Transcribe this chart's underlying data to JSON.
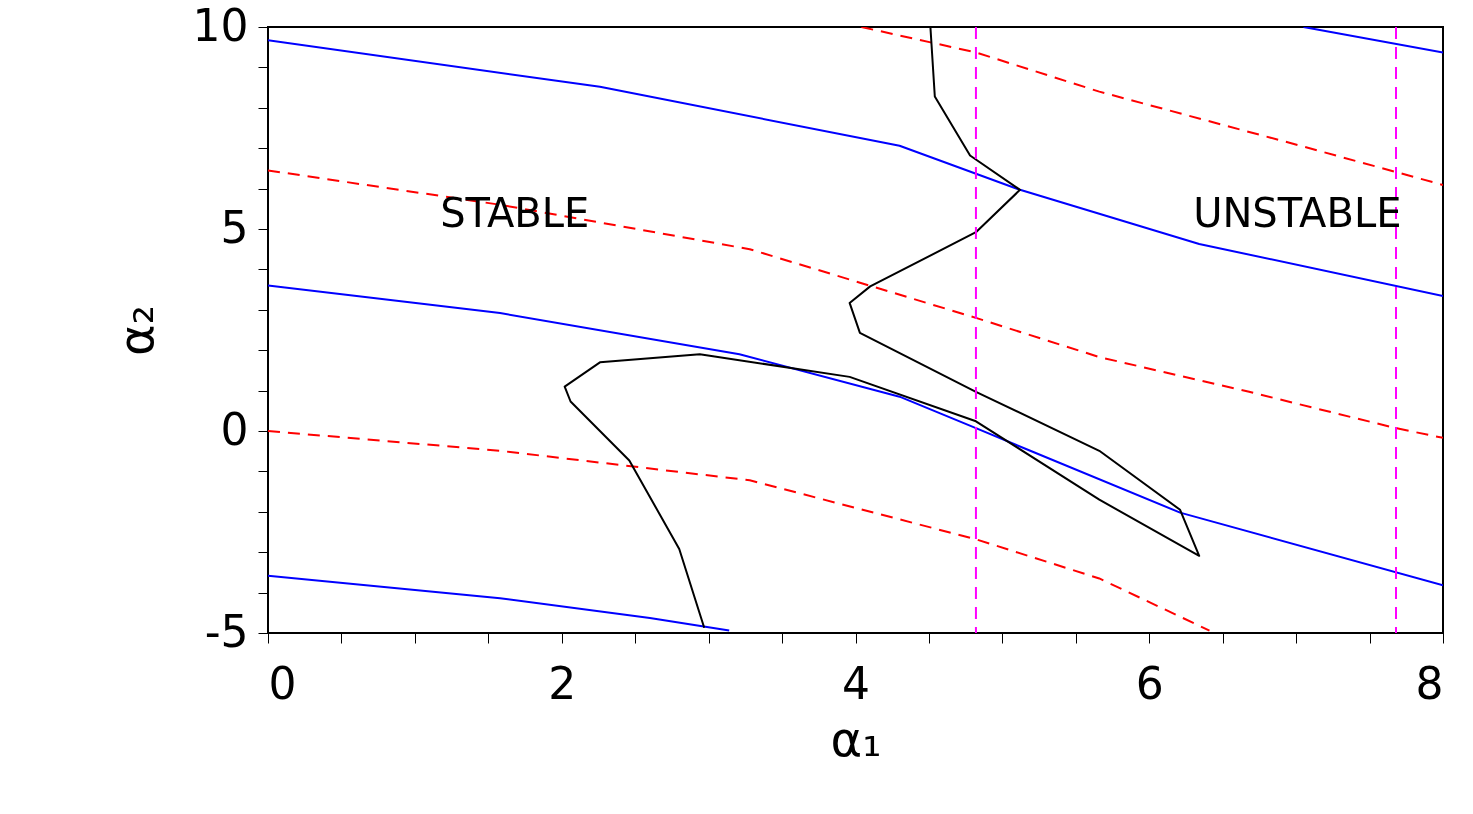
{
  "chart_data": {
    "type": "line",
    "xlabel": "α₁",
    "ylabel": "α₂",
    "xlim": [
      0,
      8
    ],
    "ylim": [
      -5,
      10
    ],
    "xticks": [
      0,
      {
        "value": 0.5,
        "label": null
      },
      {
        "value": 1,
        "label": null
      },
      {
        "value": 1.5,
        "label": null
      },
      2,
      {
        "value": 2.5,
        "label": null
      },
      {
        "value": 3,
        "label": null
      },
      {
        "value": 3.5,
        "label": null
      },
      4,
      {
        "value": 4.5,
        "label": null
      },
      {
        "value": 5,
        "label": null
      },
      {
        "value": 5.5,
        "label": null
      },
      6,
      {
        "value": 6.5,
        "label": null
      },
      {
        "value": 7,
        "label": null
      },
      {
        "value": 7.5,
        "label": null
      },
      8
    ],
    "yticks": [
      -5,
      {
        "value": -4,
        "label": null
      },
      {
        "value": -3,
        "label": null
      },
      {
        "value": -2,
        "label": null
      },
      {
        "value": -1,
        "label": null
      },
      0,
      {
        "value": 1,
        "label": null
      },
      {
        "value": 2,
        "label": null
      },
      {
        "value": 3,
        "label": null
      },
      {
        "value": 4,
        "label": null
      },
      5,
      {
        "value": 6,
        "label": null
      },
      {
        "value": 7,
        "label": null
      },
      {
        "value": 8,
        "label": null
      },
      {
        "value": 9,
        "label": null
      },
      10
    ],
    "grid": false,
    "marker": "none",
    "series": [
      {
        "color": "#0000ff",
        "line_style": "solid",
        "x": [
          0,
          2.26,
          4.3,
          5.12,
          6.34,
          8
        ],
        "values": [
          9.67,
          8.52,
          7.06,
          5.97,
          4.63,
          3.34
        ]
      },
      {
        "color": "#0000ff",
        "line_style": "solid",
        "x": [
          0,
          1.58,
          3.21,
          4.3,
          4.82,
          5.19,
          6.21,
          8
        ],
        "values": [
          3.6,
          2.92,
          1.9,
          0.85,
          0.07,
          -0.49,
          -2.02,
          -3.82
        ]
      },
      {
        "color": "#0000ff",
        "line_style": "solid",
        "x": [
          0,
          1.58,
          2.6,
          3.14
        ],
        "values": [
          -3.58,
          -4.14,
          -4.63,
          -4.94
        ]
      },
      {
        "color": "#0000ff",
        "line_style": "solid",
        "x": [
          7.05,
          8
        ],
        "values": [
          10,
          9.37
        ]
      },
      {
        "color": "#ff0000",
        "line_style": "dashed",
        "x": [
          4.04,
          4.82,
          5.66,
          7.03,
          8
        ],
        "values": [
          10,
          9.37,
          8.4,
          7.06,
          6.09
        ]
      },
      {
        "color": "#ff0000",
        "line_style": "dashed",
        "x": [
          0,
          1.58,
          3.28,
          4.82,
          5.66,
          6.68,
          7.68,
          8
        ],
        "values": [
          6.45,
          5.6,
          4.5,
          2.8,
          1.83,
          0.97,
          0.07,
          -0.17
        ]
      },
      {
        "color": "#ff0000",
        "line_style": "dashed",
        "x": [
          0,
          1.58,
          3.28,
          4.82,
          5.66,
          6.41
        ],
        "values": [
          0,
          -0.49,
          -1.22,
          -2.68,
          -3.65,
          -4.94
        ]
      },
      {
        "color": "#000000",
        "line_style": "solid",
        "x": [
          4.51,
          4.54,
          4.78,
          5.12,
          4.82,
          4.1,
          3.96,
          4.03,
          4.82,
          5.66,
          6.21,
          6.34,
          5.66,
          4.82,
          3.96,
          2.94,
          2.26,
          2.02,
          2.06,
          2.46,
          2.8,
          2.97
        ],
        "values": [
          10,
          8.28,
          6.82,
          5.97,
          4.92,
          3.58,
          3.17,
          2.43,
          0.97,
          -0.49,
          -1.95,
          -3.09,
          -1.7,
          0.24,
          1.34,
          1.9,
          1.7,
          1.1,
          0.73,
          -0.73,
          -2.92,
          -4.87
        ]
      }
    ],
    "ref_lines": [
      {
        "axis": "x",
        "value": 4.82,
        "color": "#ff00ff",
        "line_style": "dashed"
      },
      {
        "axis": "x",
        "value": 7.68,
        "color": "#ff00ff",
        "line_style": "dashed"
      }
    ],
    "annotations": [
      "STABLE",
      "UNSTABLE"
    ]
  }
}
